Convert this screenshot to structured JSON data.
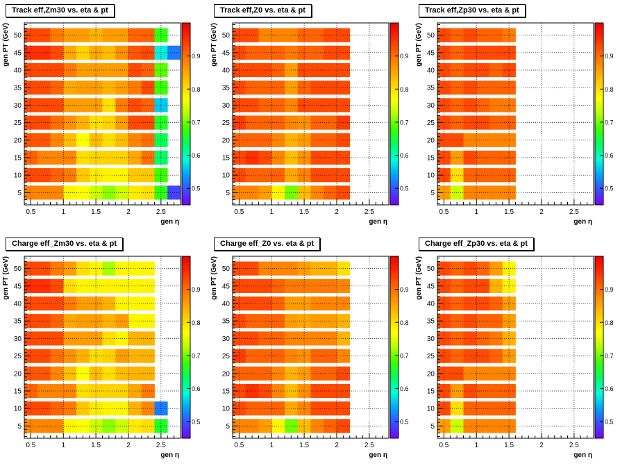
{
  "footer": "",
  "colorscale": {
    "ticks": [
      "0.5",
      "0.6",
      "0.7",
      "0.8",
      "0.9"
    ],
    "zrange": [
      0.45,
      1.0
    ],
    "gradient": [
      "#7a00ff",
      "#3a4dff",
      "#00a6ff",
      "#00ffd8",
      "#00ff60",
      "#3aff00",
      "#b4ff00",
      "#ffff00",
      "#ffcc00",
      "#ff9a00",
      "#ff6400",
      "#ff2a00",
      "#ee0000"
    ]
  },
  "chart_data": [
    {
      "type": "heatmap",
      "title": "Track eff,Zm30 vs. eta & pt",
      "xlabel": "gen η",
      "ylabel": "gen PT (GeV)",
      "x_ticks": [
        "0.5",
        "1",
        "1.5",
        "2",
        "2.5"
      ],
      "y_ticks": [
        "5",
        "10",
        "15",
        "20",
        "25",
        "30",
        "35",
        "40",
        "45",
        "50"
      ],
      "xlim": [
        0.4,
        2.8
      ],
      "ylim": [
        1.5,
        53.5
      ],
      "pt_bins": [
        5,
        10,
        15,
        20,
        25,
        30,
        35,
        40,
        45,
        50
      ],
      "eta_edges": [
        0.4,
        0.6,
        0.8,
        1.0,
        1.2,
        1.4,
        1.6,
        1.8,
        2.0,
        2.2,
        2.4,
        2.6,
        2.8
      ],
      "z": [
        [
          0.88,
          0.88,
          0.88,
          0.78,
          0.77,
          0.74,
          0.71,
          0.74,
          0.79,
          0.8,
          0.67,
          0.49
        ],
        [
          0.93,
          0.93,
          0.91,
          0.89,
          0.82,
          0.79,
          0.78,
          0.78,
          0.82,
          0.82,
          0.68,
          null
        ],
        [
          0.91,
          0.88,
          0.88,
          0.88,
          0.8,
          0.81,
          0.81,
          0.81,
          0.85,
          0.9,
          0.63,
          null
        ],
        [
          0.92,
          0.92,
          0.88,
          0.83,
          0.77,
          0.83,
          0.8,
          0.83,
          0.88,
          0.9,
          0.64,
          null
        ],
        [
          0.93,
          0.93,
          0.9,
          0.87,
          0.84,
          0.8,
          0.81,
          0.86,
          0.93,
          0.93,
          0.66,
          null
        ],
        [
          0.93,
          0.93,
          0.93,
          0.86,
          0.86,
          0.86,
          0.8,
          0.89,
          0.93,
          0.91,
          0.56,
          null
        ],
        [
          0.93,
          0.93,
          0.91,
          0.85,
          0.86,
          0.86,
          0.84,
          0.86,
          0.89,
          0.93,
          0.68,
          null
        ],
        [
          0.93,
          0.93,
          0.93,
          0.89,
          0.86,
          0.86,
          0.86,
          0.86,
          0.93,
          0.91,
          0.69,
          null
        ],
        [
          0.95,
          0.95,
          0.93,
          0.85,
          0.81,
          0.85,
          0.83,
          0.87,
          0.92,
          0.93,
          0.58,
          0.52
        ],
        [
          0.93,
          0.93,
          0.89,
          0.86,
          0.86,
          0.84,
          0.86,
          0.86,
          0.91,
          0.91,
          0.67,
          null
        ]
      ]
    },
    {
      "type": "heatmap",
      "title": "Track eff,Z0 vs. eta & pt",
      "xlabel": "gen η",
      "ylabel": "gen PT (GeV)",
      "x_ticks": [
        "0.5",
        "1",
        "1.5",
        "2",
        "2.5"
      ],
      "y_ticks": [
        "5",
        "10",
        "15",
        "20",
        "25",
        "30",
        "35",
        "40",
        "45",
        "50"
      ],
      "xlim": [
        0.4,
        2.8
      ],
      "ylim": [
        1.5,
        53.5
      ],
      "pt_bins": [
        5,
        10,
        15,
        20,
        25,
        30,
        35,
        40,
        45,
        50
      ],
      "eta_edges": [
        0.4,
        0.6,
        0.8,
        1.0,
        1.2,
        1.4,
        1.6,
        1.8,
        2.0,
        2.2,
        2.4,
        2.6,
        2.8
      ],
      "z": [
        [
          0.88,
          0.88,
          0.86,
          0.78,
          0.7,
          0.83,
          0.88,
          0.91,
          0.93,
          null,
          null,
          null
        ],
        [
          0.93,
          0.91,
          0.91,
          0.91,
          0.85,
          0.88,
          0.93,
          0.93,
          0.93,
          null,
          null,
          null
        ],
        [
          0.93,
          0.95,
          0.93,
          0.88,
          0.83,
          0.87,
          0.93,
          0.93,
          0.93,
          null,
          null,
          null
        ],
        [
          0.91,
          0.91,
          0.91,
          0.88,
          0.84,
          0.86,
          0.91,
          0.91,
          0.93,
          null,
          null,
          null
        ],
        [
          0.94,
          0.91,
          0.91,
          0.91,
          0.88,
          0.87,
          0.91,
          0.91,
          0.94,
          null,
          null,
          null
        ],
        [
          0.93,
          0.93,
          0.91,
          0.91,
          0.88,
          0.93,
          0.93,
          0.93,
          0.93,
          null,
          null,
          null
        ],
        [
          0.93,
          0.91,
          0.91,
          0.91,
          0.86,
          0.91,
          0.93,
          0.93,
          0.93,
          null,
          null,
          null
        ],
        [
          0.93,
          0.93,
          0.93,
          0.91,
          0.86,
          0.93,
          0.93,
          0.93,
          0.93,
          null,
          null,
          null
        ],
        [
          0.93,
          0.91,
          0.91,
          0.91,
          0.89,
          0.91,
          0.91,
          0.93,
          0.93,
          null,
          null,
          null
        ],
        [
          0.93,
          0.93,
          0.88,
          0.88,
          0.88,
          0.91,
          0.91,
          0.93,
          0.93,
          null,
          null,
          null
        ]
      ]
    },
    {
      "type": "heatmap",
      "title": "Track eff,Zp30 vs. eta & pt",
      "xlabel": "gen η",
      "ylabel": "gen PT (GeV)",
      "x_ticks": [
        "0.5",
        "1",
        "1.5",
        "2",
        "2.5"
      ],
      "y_ticks": [
        "5",
        "10",
        "15",
        "20",
        "25",
        "30",
        "35",
        "40",
        "45",
        "50"
      ],
      "xlim": [
        0.4,
        2.8
      ],
      "ylim": [
        1.5,
        53.5
      ],
      "pt_bins": [
        5,
        10,
        15,
        20,
        25,
        30,
        35,
        40,
        45,
        50
      ],
      "eta_edges": [
        0.4,
        0.6,
        0.8,
        1.0,
        1.2,
        1.4,
        1.6,
        1.8,
        2.0,
        2.2,
        2.4,
        2.6,
        2.8
      ],
      "z": [
        [
          0.86,
          0.74,
          0.88,
          0.88,
          0.88,
          0.88,
          null,
          null,
          null,
          null,
          null,
          null
        ],
        [
          0.93,
          0.8,
          0.91,
          0.91,
          0.91,
          0.91,
          null,
          null,
          null,
          null,
          null,
          null
        ],
        [
          0.93,
          0.86,
          0.93,
          0.91,
          0.91,
          0.91,
          null,
          null,
          null,
          null,
          null,
          null
        ],
        [
          0.93,
          0.93,
          0.88,
          0.88,
          0.88,
          0.88,
          null,
          null,
          null,
          null,
          null,
          null
        ],
        [
          0.93,
          0.91,
          0.93,
          0.93,
          0.91,
          0.91,
          null,
          null,
          null,
          null,
          null,
          null
        ],
        [
          0.93,
          0.91,
          0.93,
          0.91,
          0.89,
          0.89,
          null,
          null,
          null,
          null,
          null,
          null
        ],
        [
          0.93,
          0.91,
          0.93,
          0.91,
          0.91,
          0.91,
          null,
          null,
          null,
          null,
          null,
          null
        ],
        [
          0.93,
          0.91,
          0.93,
          0.93,
          0.91,
          0.93,
          null,
          null,
          null,
          null,
          null,
          null
        ],
        [
          0.93,
          0.91,
          0.93,
          0.93,
          0.93,
          0.93,
          null,
          null,
          null,
          null,
          null,
          null
        ],
        [
          0.93,
          0.91,
          0.93,
          0.91,
          0.91,
          0.89,
          null,
          null,
          null,
          null,
          null,
          null
        ]
      ]
    },
    {
      "type": "heatmap",
      "title": "Charge eff_Zm30 vs. eta & pt",
      "xlabel": "gen η",
      "ylabel": "gen PT (GeV)",
      "x_ticks": [
        "0.5",
        "1",
        "1.5",
        "2",
        "2.5"
      ],
      "y_ticks": [
        "5",
        "10",
        "15",
        "20",
        "25",
        "30",
        "35",
        "40",
        "45",
        "50"
      ],
      "xlim": [
        0.4,
        2.8
      ],
      "ylim": [
        1.5,
        53.5
      ],
      "pt_bins": [
        5,
        10,
        15,
        20,
        25,
        30,
        35,
        40,
        45,
        50
      ],
      "eta_edges": [
        0.4,
        0.6,
        0.8,
        1.0,
        1.2,
        1.4,
        1.6,
        1.8,
        2.0,
        2.2,
        2.4,
        2.6,
        2.8
      ],
      "z": [
        [
          0.88,
          0.88,
          0.88,
          0.78,
          0.77,
          0.74,
          0.71,
          0.74,
          0.79,
          0.8,
          0.66,
          null
        ],
        [
          0.93,
          0.93,
          0.91,
          0.89,
          0.82,
          0.79,
          0.78,
          0.78,
          0.84,
          0.88,
          0.52,
          null
        ],
        [
          0.91,
          0.88,
          0.88,
          0.88,
          0.8,
          0.81,
          0.81,
          0.81,
          0.85,
          0.89,
          null,
          null
        ],
        [
          0.92,
          0.92,
          0.88,
          0.83,
          0.77,
          0.83,
          0.8,
          0.83,
          0.84,
          0.84,
          null,
          null
        ],
        [
          0.93,
          0.93,
          0.9,
          0.87,
          0.84,
          0.8,
          0.81,
          0.86,
          0.84,
          0.84,
          null,
          null
        ],
        [
          0.93,
          0.93,
          0.93,
          0.86,
          0.86,
          0.86,
          0.8,
          0.78,
          0.84,
          0.84,
          null,
          null
        ],
        [
          0.93,
          0.93,
          0.91,
          0.85,
          0.86,
          0.86,
          0.84,
          0.86,
          0.78,
          0.78,
          null,
          null
        ],
        [
          0.93,
          0.93,
          0.93,
          0.89,
          0.86,
          0.86,
          0.84,
          0.78,
          0.78,
          0.78,
          null,
          null
        ],
        [
          0.95,
          0.95,
          0.93,
          0.8,
          0.78,
          0.78,
          0.78,
          0.78,
          0.78,
          0.78,
          null,
          null
        ],
        [
          0.93,
          0.93,
          0.89,
          0.86,
          0.8,
          0.78,
          0.72,
          0.78,
          0.78,
          0.78,
          null,
          null
        ]
      ]
    },
    {
      "type": "heatmap",
      "title": "Charge eff_Z0 vs. eta & pt",
      "xlabel": "gen η",
      "ylabel": "gen PT (GeV)",
      "x_ticks": [
        "0.5",
        "1",
        "1.5",
        "2",
        "2.5"
      ],
      "y_ticks": [
        "5",
        "10",
        "15",
        "20",
        "25",
        "30",
        "35",
        "40",
        "45",
        "50"
      ],
      "xlim": [
        0.4,
        2.8
      ],
      "ylim": [
        1.5,
        53.5
      ],
      "pt_bins": [
        5,
        10,
        15,
        20,
        25,
        30,
        35,
        40,
        45,
        50
      ],
      "eta_edges": [
        0.4,
        0.6,
        0.8,
        1.0,
        1.2,
        1.4,
        1.6,
        1.8,
        2.0,
        2.2,
        2.4,
        2.6,
        2.8
      ],
      "z": [
        [
          0.88,
          0.88,
          0.86,
          0.78,
          0.7,
          0.83,
          0.88,
          0.91,
          0.93,
          null,
          null,
          null
        ],
        [
          0.93,
          0.91,
          0.91,
          0.91,
          0.85,
          0.88,
          0.93,
          0.93,
          0.93,
          null,
          null,
          null
        ],
        [
          0.93,
          0.95,
          0.93,
          0.88,
          0.83,
          0.87,
          0.93,
          0.93,
          0.93,
          null,
          null,
          null
        ],
        [
          0.91,
          0.91,
          0.91,
          0.88,
          0.84,
          0.86,
          0.91,
          0.91,
          0.93,
          null,
          null,
          null
        ],
        [
          0.94,
          0.91,
          0.91,
          0.91,
          0.88,
          0.87,
          0.91,
          0.91,
          0.88,
          null,
          null,
          null
        ],
        [
          0.93,
          0.93,
          0.91,
          0.91,
          0.88,
          0.88,
          0.88,
          0.88,
          0.84,
          null,
          null,
          null
        ],
        [
          0.93,
          0.91,
          0.91,
          0.91,
          0.86,
          0.85,
          0.86,
          0.86,
          0.84,
          null,
          null,
          null
        ],
        [
          0.93,
          0.93,
          0.93,
          0.91,
          0.86,
          0.86,
          0.88,
          0.88,
          0.88,
          null,
          null,
          null
        ],
        [
          0.93,
          0.93,
          0.93,
          0.91,
          0.89,
          0.89,
          0.89,
          0.89,
          0.88,
          null,
          null,
          null
        ],
        [
          0.93,
          0.93,
          0.88,
          0.88,
          0.88,
          0.86,
          0.84,
          0.84,
          0.8,
          null,
          null,
          null
        ]
      ]
    },
    {
      "type": "heatmap",
      "title": "Charge eff_Zp30 vs. eta & pt",
      "xlabel": "gen η",
      "ylabel": "gen PT (GeV)",
      "x_ticks": [
        "0.5",
        "1",
        "1.5",
        "2",
        "2.5"
      ],
      "y_ticks": [
        "5",
        "10",
        "15",
        "20",
        "25",
        "30",
        "35",
        "40",
        "45",
        "50"
      ],
      "xlim": [
        0.4,
        2.8
      ],
      "ylim": [
        1.5,
        53.5
      ],
      "pt_bins": [
        5,
        10,
        15,
        20,
        25,
        30,
        35,
        40,
        45,
        50
      ],
      "eta_edges": [
        0.4,
        0.6,
        0.8,
        1.0,
        1.2,
        1.4,
        1.6,
        1.8,
        2.0,
        2.2,
        2.4,
        2.6,
        2.8
      ],
      "z": [
        [
          0.86,
          0.74,
          0.88,
          0.88,
          0.88,
          0.88,
          null,
          null,
          null,
          null,
          null,
          null
        ],
        [
          0.93,
          0.8,
          0.91,
          0.91,
          0.91,
          0.91,
          null,
          null,
          null,
          null,
          null,
          null
        ],
        [
          0.93,
          0.86,
          0.93,
          0.91,
          0.91,
          0.91,
          null,
          null,
          null,
          null,
          null,
          null
        ],
        [
          0.93,
          0.93,
          0.88,
          0.88,
          0.88,
          0.88,
          null,
          null,
          null,
          null,
          null,
          null
        ],
        [
          0.93,
          0.91,
          0.93,
          0.93,
          0.91,
          0.86,
          null,
          null,
          null,
          null,
          null,
          null
        ],
        [
          0.93,
          0.91,
          0.93,
          0.91,
          0.89,
          0.84,
          null,
          null,
          null,
          null,
          null,
          null
        ],
        [
          0.93,
          0.91,
          0.93,
          0.91,
          0.91,
          0.86,
          null,
          null,
          null,
          null,
          null,
          null
        ],
        [
          0.93,
          0.91,
          0.93,
          0.93,
          0.91,
          0.86,
          null,
          null,
          null,
          null,
          null,
          null
        ],
        [
          0.93,
          0.91,
          0.93,
          0.93,
          0.84,
          0.78,
          null,
          null,
          null,
          null,
          null,
          null
        ],
        [
          0.93,
          0.91,
          0.93,
          0.91,
          0.86,
          0.78,
          null,
          null,
          null,
          null,
          null,
          null
        ]
      ]
    }
  ]
}
